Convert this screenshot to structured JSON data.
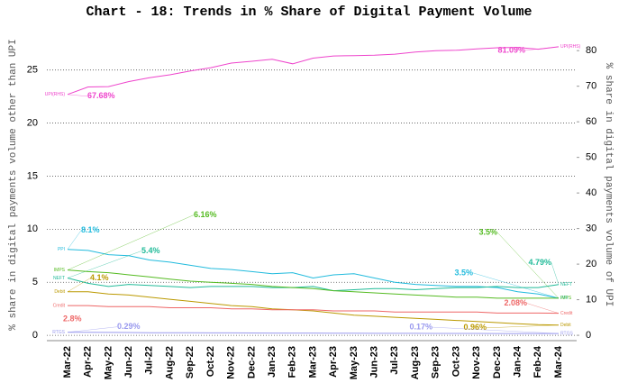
{
  "chart_data": {
    "type": "line",
    "title": "Chart - 18: Trends in % Share of Digital Payment Volume",
    "y_label": "% share in digital payments volume other than UPI",
    "y2_label": "% share in digital payments volume of UPI",
    "categories": [
      "Mar-22",
      "Apr-22",
      "May-22",
      "Jun-22",
      "Jul-22",
      "Aug-22",
      "Sep-22",
      "Oct-22",
      "Nov-22",
      "Dec-22",
      "Jan-23",
      "Feb-23",
      "Mar-23",
      "Apr-23",
      "May-23",
      "Jun-23",
      "Jul-23",
      "Aug-23",
      "Sep-23",
      "Oct-23",
      "Nov-23",
      "Dec-23",
      "Jan-24",
      "Feb-24",
      "Mar-24"
    ],
    "ylim": [
      -0.5,
      28.2
    ],
    "yticks": [
      0,
      5,
      10,
      15,
      20,
      25
    ],
    "y2lim": [
      -1.5,
      84.1
    ],
    "y2ticks": [
      0,
      10,
      20,
      30,
      40,
      50,
      60,
      70,
      80
    ],
    "grid": true,
    "series": [
      {
        "name": "UPI(RHS)",
        "color": "#ee44cc",
        "axis": "y2",
        "values": [
          67.68,
          69.8,
          69.9,
          71.3,
          72.4,
          73.2,
          74.3,
          75.2,
          76.5,
          77.0,
          77.6,
          76.3,
          77.9,
          78.5,
          78.6,
          78.7,
          79.0,
          79.6,
          80.0,
          80.1,
          80.5,
          80.8,
          80.9,
          80.4,
          81.09
        ],
        "value_labels": [
          "67.68%",
          null,
          null,
          null,
          null,
          null,
          null,
          null,
          null,
          null,
          null,
          null,
          null,
          null,
          null,
          null,
          null,
          null,
          null,
          null,
          null,
          null,
          null,
          null,
          "81.09%"
        ]
      },
      {
        "name": "PPI",
        "color": "#22bbdd",
        "values": [
          8.1,
          8.0,
          7.6,
          7.5,
          7.1,
          6.9,
          6.6,
          6.3,
          6.2,
          6.0,
          5.8,
          5.9,
          5.4,
          5.7,
          5.8,
          5.4,
          5.0,
          4.8,
          4.7,
          4.6,
          4.6,
          4.5,
          4.1,
          3.9,
          3.5
        ],
        "value_labels": [
          "8.1%",
          null,
          null,
          null,
          null,
          null,
          null,
          null,
          null,
          null,
          null,
          null,
          null,
          null,
          null,
          null,
          null,
          null,
          null,
          null,
          null,
          null,
          null,
          null,
          "3.5%"
        ]
      },
      {
        "name": "NEFT",
        "color": "#22bb99",
        "values": [
          5.4,
          4.9,
          4.6,
          4.8,
          4.7,
          4.6,
          4.5,
          4.6,
          4.6,
          4.6,
          4.5,
          4.5,
          4.6,
          4.2,
          4.3,
          4.4,
          4.4,
          4.3,
          4.4,
          4.5,
          4.5,
          4.6,
          4.5,
          4.5,
          4.79
        ],
        "value_labels": [
          "5.4%",
          null,
          null,
          null,
          null,
          null,
          null,
          null,
          null,
          null,
          null,
          null,
          null,
          null,
          null,
          null,
          null,
          null,
          null,
          null,
          null,
          null,
          null,
          null,
          "4.79%"
        ]
      },
      {
        "name": "IMPS",
        "color": "#55bb22",
        "values": [
          6.16,
          6.0,
          5.9,
          5.7,
          5.5,
          5.3,
          5.1,
          5.0,
          4.9,
          4.8,
          4.6,
          4.5,
          4.4,
          4.2,
          4.1,
          4.0,
          3.9,
          3.8,
          3.7,
          3.6,
          3.6,
          3.5,
          3.5,
          3.5,
          3.5
        ],
        "value_labels": [
          "6.16%",
          null,
          null,
          null,
          null,
          null,
          null,
          null,
          null,
          null,
          null,
          null,
          null,
          null,
          null,
          null,
          null,
          null,
          null,
          null,
          null,
          null,
          null,
          null,
          "3.5%"
        ]
      },
      {
        "name": "Debit",
        "color": "#bb9900",
        "values": [
          4.1,
          4.1,
          3.9,
          3.8,
          3.6,
          3.4,
          3.2,
          3.0,
          2.8,
          2.7,
          2.5,
          2.4,
          2.3,
          2.1,
          1.9,
          1.8,
          1.7,
          1.6,
          1.5,
          1.4,
          1.3,
          1.2,
          1.1,
          1.0,
          0.96
        ],
        "value_labels": [
          "4.1%",
          null,
          null,
          null,
          null,
          null,
          null,
          null,
          null,
          null,
          null,
          null,
          null,
          null,
          null,
          null,
          null,
          null,
          null,
          null,
          null,
          null,
          null,
          null,
          "0.96%"
        ]
      },
      {
        "name": "Credit",
        "color": "#ee6666",
        "values": [
          2.8,
          2.8,
          2.7,
          2.7,
          2.7,
          2.6,
          2.6,
          2.6,
          2.5,
          2.5,
          2.4,
          2.4,
          2.4,
          2.3,
          2.3,
          2.3,
          2.2,
          2.2,
          2.2,
          2.2,
          2.2,
          2.1,
          2.1,
          2.1,
          2.08
        ],
        "value_labels": [
          "2.8%",
          null,
          null,
          null,
          null,
          null,
          null,
          null,
          null,
          null,
          null,
          null,
          null,
          null,
          null,
          null,
          null,
          null,
          null,
          null,
          null,
          null,
          null,
          null,
          "2.08%"
        ]
      },
      {
        "name": "RTGS",
        "color": "#9999ee",
        "values": [
          0.29,
          0.28,
          0.27,
          0.26,
          0.25,
          0.25,
          0.24,
          0.23,
          0.23,
          0.22,
          0.21,
          0.21,
          0.21,
          0.2,
          0.2,
          0.19,
          0.19,
          0.19,
          0.18,
          0.18,
          0.18,
          0.17,
          0.17,
          0.17,
          0.17
        ],
        "value_labels": [
          "0.29%",
          null,
          null,
          null,
          null,
          null,
          null,
          null,
          null,
          null,
          null,
          null,
          null,
          null,
          null,
          null,
          null,
          null,
          null,
          null,
          null,
          null,
          null,
          null,
          "0.17%"
        ]
      }
    ]
  }
}
